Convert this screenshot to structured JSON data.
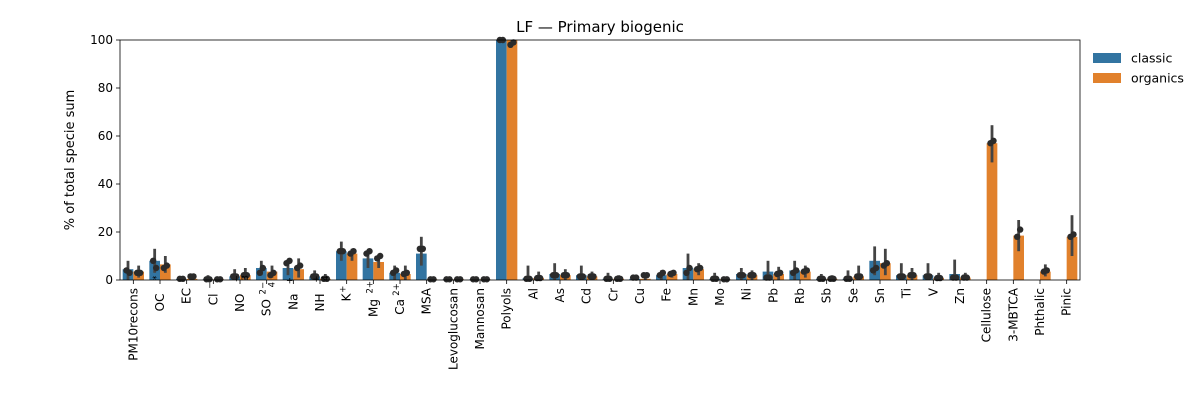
{
  "chart_data": {
    "type": "bar",
    "title": "LF — Primary biogenic",
    "xlabel": "",
    "ylabel": "% of total specie sum",
    "ylim": [
      0,
      100
    ],
    "yticks": [
      0,
      20,
      40,
      60,
      80,
      100
    ],
    "grid": false,
    "legend_position": "outside-top-right",
    "categories": [
      {
        "text": "PM10recons"
      },
      {
        "text": "OC",
        "sup": "*"
      },
      {
        "text": "EC"
      },
      {
        "text": "Cl",
        "sup": "−"
      },
      {
        "text": "NO",
        "sub": "3",
        "sup": "−"
      },
      {
        "text": "SO",
        "sub": "4",
        "sup": "2−"
      },
      {
        "text": "Na",
        "sup": "+"
      },
      {
        "text": "NH",
        "sub": "4",
        "sup": "+"
      },
      {
        "text": "K",
        "sup": "+"
      },
      {
        "text": "Mg",
        "sup": "2+"
      },
      {
        "text": "Ca",
        "sup": "2+"
      },
      {
        "text": "MSA"
      },
      {
        "text": "Levoglucosan"
      },
      {
        "text": "Mannosan"
      },
      {
        "text": "Polyols"
      },
      {
        "text": "Al"
      },
      {
        "text": "As"
      },
      {
        "text": "Cd"
      },
      {
        "text": "Cr"
      },
      {
        "text": "Cu"
      },
      {
        "text": "Fe"
      },
      {
        "text": "Mn"
      },
      {
        "text": "Mo"
      },
      {
        "text": "Ni"
      },
      {
        "text": "Pb"
      },
      {
        "text": "Rb"
      },
      {
        "text": "Sb"
      },
      {
        "text": "Se"
      },
      {
        "text": "Sn"
      },
      {
        "text": "Ti"
      },
      {
        "text": "V"
      },
      {
        "text": "Zn"
      },
      {
        "text": "Cellulose"
      },
      {
        "text": "3-MBTCA"
      },
      {
        "text": "Phthalic"
      },
      {
        "text": "Pinic"
      }
    ],
    "series": [
      {
        "name": "classic",
        "color": "#3274a1",
        "values": [
          4.5,
          8,
          0.5,
          0.3,
          1.5,
          5,
          5,
          1.5,
          12,
          9,
          3,
          11,
          0.3,
          0.3,
          100,
          0.8,
          2.5,
          2,
          0.5,
          0.5,
          2,
          5,
          0.5,
          2.5,
          3.5,
          4,
          0.5,
          0.5,
          8,
          2,
          2,
          2.5,
          null,
          null,
          null,
          null
        ],
        "err_low": [
          0,
          3,
          0,
          0,
          0,
          2,
          2,
          0,
          8,
          5,
          0,
          6,
          0,
          0,
          99.5,
          0,
          0,
          0,
          0,
          0,
          0,
          0,
          0,
          0,
          0,
          0,
          0,
          0,
          2,
          0,
          0,
          0,
          null,
          null,
          null,
          null
        ],
        "err_high": [
          8,
          13,
          1.5,
          2,
          4.5,
          8,
          8.5,
          4,
          16,
          12.5,
          6,
          18,
          0.5,
          0.5,
          100,
          6,
          7,
          6,
          3,
          1,
          4,
          11,
          3,
          5,
          8,
          8,
          2.5,
          4,
          14,
          7,
          7,
          8.5,
          null,
          null,
          null,
          null
        ],
        "points": [
          [
            4,
            3
          ],
          [
            8,
            5
          ],
          [
            0.5,
            0.5
          ],
          [
            0.3,
            0.3
          ],
          [
            1.5,
            1.5
          ],
          [
            3,
            5
          ],
          [
            7,
            8
          ],
          [
            1.5,
            1.5
          ],
          [
            12,
            12
          ],
          [
            11,
            12
          ],
          [
            3,
            4
          ],
          [
            13,
            13
          ],
          [
            0.3,
            0.3
          ],
          [
            0.3,
            0.3
          ],
          [
            100,
            100
          ],
          [
            0.5,
            0.5
          ],
          [
            2,
            2
          ],
          [
            1.5,
            1.5
          ],
          [
            0.5,
            0.5
          ],
          [
            1,
            1
          ],
          [
            2,
            3
          ],
          [
            3,
            5
          ],
          [
            0.5,
            0.5
          ],
          [
            2,
            2
          ],
          [
            1,
            1
          ],
          [
            3,
            4
          ],
          [
            0.5,
            0.5
          ],
          [
            0.5,
            0.5
          ],
          [
            4,
            5
          ],
          [
            1.5,
            1.5
          ],
          [
            1.5,
            1.5
          ],
          [
            1,
            1
          ],
          null,
          null,
          null,
          null
        ]
      },
      {
        "name": "organics",
        "color": "#e1812c",
        "values": [
          3.5,
          6.5,
          0.5,
          0.3,
          2,
          3.5,
          4.5,
          0.5,
          11,
          7.5,
          2.5,
          0.3,
          0.3,
          0.3,
          100,
          0.8,
          2,
          1.5,
          0.5,
          0.5,
          2.5,
          4.5,
          0.3,
          2,
          2.5,
          3.5,
          0.5,
          1.5,
          7,
          2,
          0.8,
          1,
          57,
          18.5,
          3.5,
          18
        ],
        "err_low": [
          1,
          3,
          0,
          0,
          0,
          1,
          1,
          0,
          8,
          5,
          0,
          0,
          0,
          0,
          98,
          0,
          0,
          0,
          0,
          0,
          1,
          2,
          0,
          0,
          0,
          1,
          0,
          0,
          2,
          0,
          0,
          0,
          49,
          12,
          1.5,
          10
        ],
        "err_high": [
          6,
          10,
          2,
          1,
          5,
          6,
          9,
          2.5,
          13,
          10,
          6,
          0.5,
          0.5,
          0.5,
          100,
          3.5,
          4.5,
          3.5,
          2,
          2,
          4,
          7,
          0.5,
          4,
          5.5,
          6,
          2,
          6,
          13,
          5,
          3,
          3,
          64.5,
          25,
          6.5,
          27
        ],
        "points": [
          [
            3,
            3
          ],
          [
            5,
            6
          ],
          [
            1.5,
            1.5
          ],
          [
            0.3,
            0.3
          ],
          [
            2,
            2
          ],
          [
            2,
            3
          ],
          [
            5,
            6
          ],
          [
            0.5,
            0.5
          ],
          [
            11,
            12
          ],
          [
            9,
            10
          ],
          [
            2.5,
            3
          ],
          [
            0.3,
            0.3
          ],
          [
            0.3,
            0.3
          ],
          [
            0.3,
            0.3
          ],
          [
            98,
            99
          ],
          [
            0.8,
            0.8
          ],
          [
            2,
            2
          ],
          [
            1.5,
            1.5
          ],
          [
            0.5,
            0.5
          ],
          [
            2,
            2
          ],
          [
            2.5,
            3
          ],
          [
            4.5,
            5
          ],
          [
            0.3,
            0.3
          ],
          [
            2,
            2
          ],
          [
            2.5,
            3
          ],
          [
            3.5,
            4
          ],
          [
            0.5,
            0.5
          ],
          [
            1.5,
            1.5
          ],
          [
            6,
            7
          ],
          [
            2,
            2
          ],
          [
            0.8,
            0.8
          ],
          [
            1,
            1
          ],
          [
            57,
            58
          ],
          [
            18,
            21
          ],
          [
            3.5,
            4
          ],
          [
            18,
            19
          ]
        ]
      }
    ]
  }
}
